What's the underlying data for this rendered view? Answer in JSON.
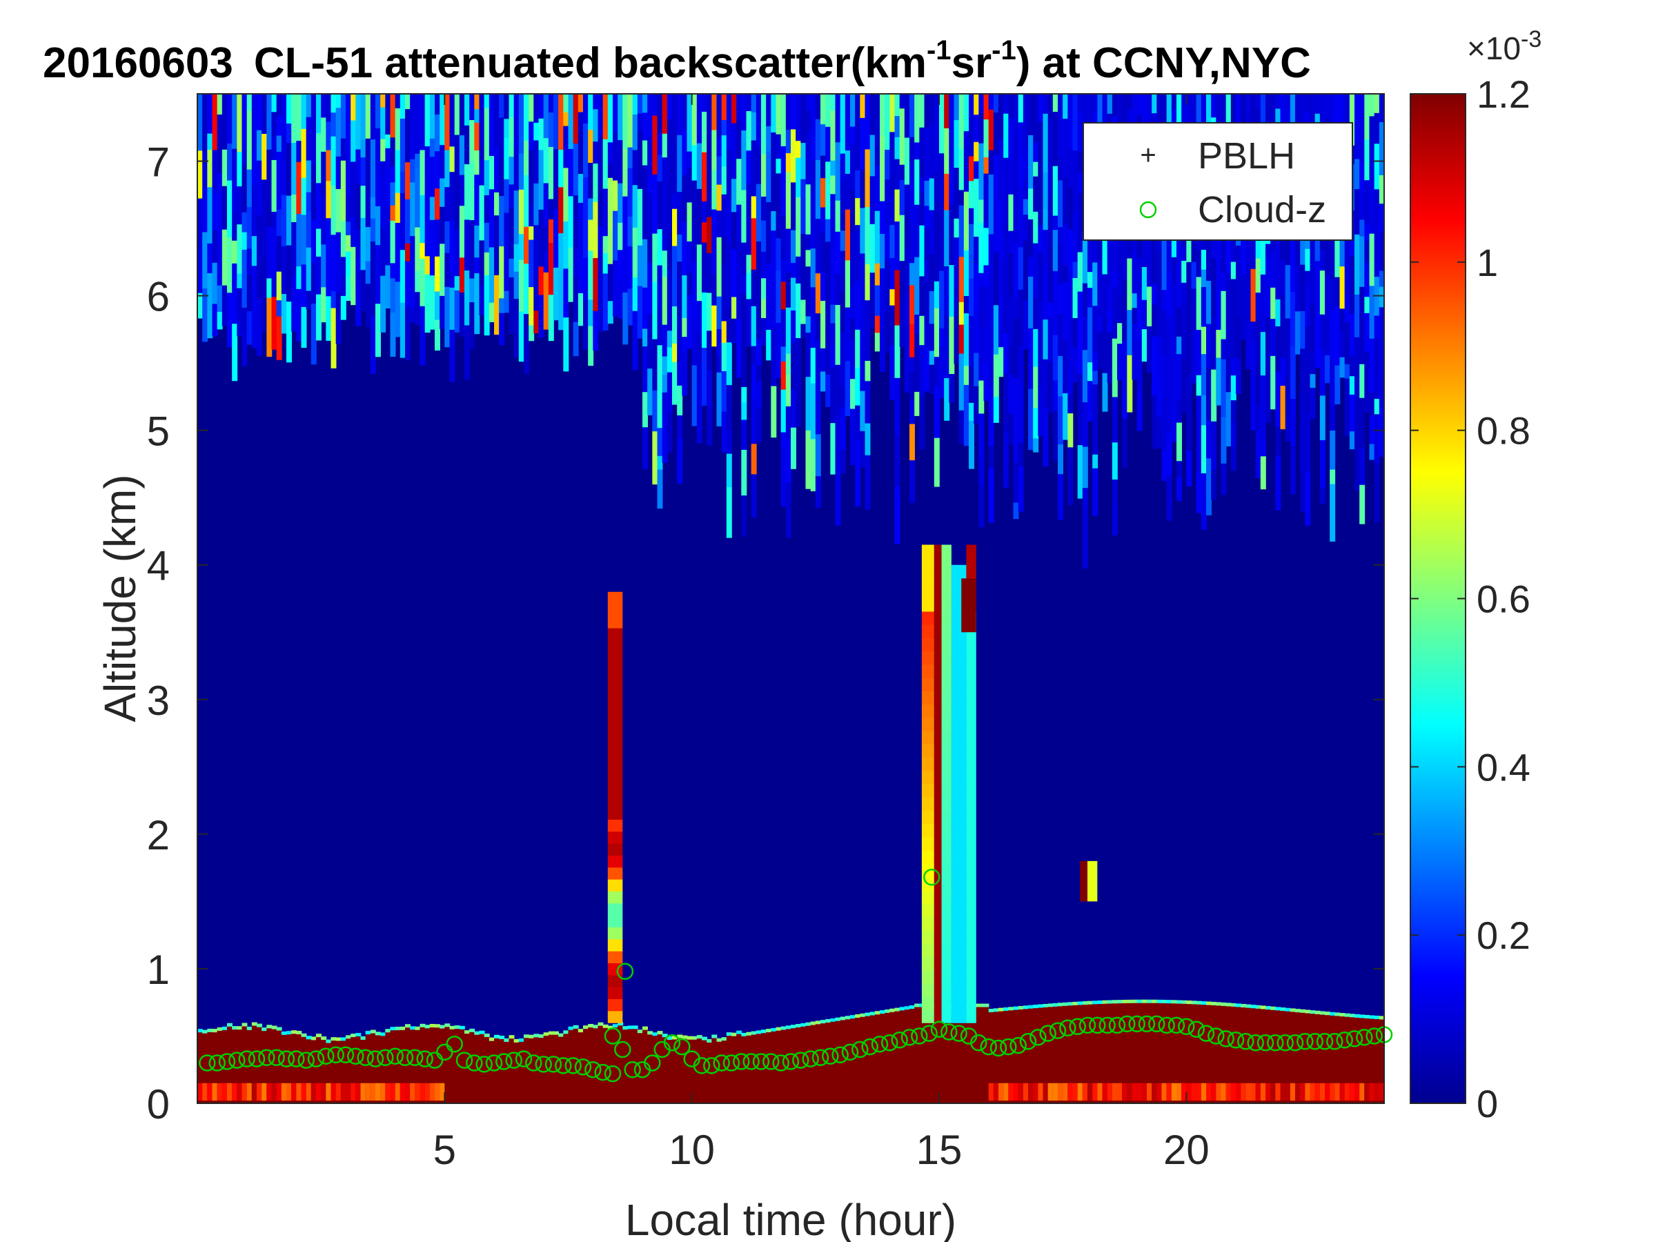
{
  "chart_data": {
    "type": "heatmap",
    "title": {
      "date": "20160603",
      "main": "CL-51 attenuated backscatter(km",
      "sup1": "-1",
      "sr": "sr",
      "sup2": "-1",
      "tail": ") at CCNY,NYC"
    },
    "xlabel": "Local time (hour)",
    "ylabel": "Altitude (km)",
    "xlim": [
      0,
      24
    ],
    "ylim": [
      0,
      7.5
    ],
    "xticks": [
      5,
      10,
      15,
      20
    ],
    "yticks": [
      0,
      1,
      2,
      3,
      4,
      5,
      6,
      7
    ],
    "colorbar": {
      "min": 0,
      "max": 1.2,
      "ticks": [
        "0",
        "0.2",
        "0.4",
        "0.6",
        "0.8",
        "1",
        "1.2"
      ],
      "multiplier_base": "×10",
      "multiplier_exp": "-3",
      "colormap": "jet"
    },
    "legend": {
      "location": "top-right",
      "entries": [
        {
          "label": "PBLH",
          "marker": "+",
          "color": "#000000"
        },
        {
          "label": "Cloud-z",
          "marker": "o",
          "color": "#00d000"
        }
      ]
    },
    "series": [
      {
        "name": "Cloud-z",
        "marker": "o",
        "color": "#00d000",
        "x": [
          0.2,
          0.4,
          0.6,
          0.8,
          1.0,
          1.2,
          1.4,
          1.6,
          1.8,
          2.0,
          2.2,
          2.4,
          2.6,
          2.8,
          3.0,
          3.2,
          3.4,
          3.6,
          3.8,
          4.0,
          4.2,
          4.4,
          4.6,
          4.8,
          5.0,
          5.2,
          5.4,
          5.6,
          5.8,
          6.0,
          6.2,
          6.4,
          6.6,
          6.8,
          7.0,
          7.2,
          7.4,
          7.6,
          7.8,
          8.0,
          8.2,
          8.4,
          8.6,
          8.8,
          9.0,
          9.2,
          9.4,
          9.6,
          9.8,
          10.0,
          10.2,
          10.4,
          10.6,
          10.8,
          11.0,
          11.2,
          11.4,
          11.6,
          11.8,
          12.0,
          12.2,
          12.4,
          12.6,
          12.8,
          13.0,
          13.2,
          13.4,
          13.6,
          13.8,
          14.0,
          14.2,
          14.4,
          14.6,
          14.8,
          15.0,
          15.2,
          15.4,
          15.6,
          15.8,
          16.0,
          16.2,
          16.4,
          16.6,
          16.8,
          17.0,
          17.2,
          17.4,
          17.6,
          17.8,
          18.0,
          18.2,
          18.4,
          18.6,
          18.8,
          19.0,
          19.2,
          19.4,
          19.6,
          19.8,
          20.0,
          20.2,
          20.4,
          20.6,
          20.8,
          21.0,
          21.2,
          21.4,
          21.6,
          21.8,
          22.0,
          22.2,
          22.4,
          22.6,
          22.8,
          23.0,
          23.2,
          23.4,
          23.6,
          23.8,
          24.0,
          8.4,
          8.65,
          14.85
        ],
        "y": [
          0.3,
          0.3,
          0.31,
          0.32,
          0.33,
          0.33,
          0.34,
          0.34,
          0.33,
          0.33,
          0.32,
          0.33,
          0.35,
          0.36,
          0.36,
          0.35,
          0.34,
          0.33,
          0.34,
          0.35,
          0.34,
          0.34,
          0.33,
          0.32,
          0.38,
          0.44,
          0.32,
          0.3,
          0.29,
          0.3,
          0.31,
          0.32,
          0.33,
          0.3,
          0.29,
          0.29,
          0.28,
          0.28,
          0.27,
          0.25,
          0.23,
          0.22,
          0.4,
          0.25,
          0.25,
          0.3,
          0.4,
          0.45,
          0.42,
          0.33,
          0.28,
          0.28,
          0.3,
          0.3,
          0.31,
          0.31,
          0.31,
          0.31,
          0.3,
          0.31,
          0.32,
          0.33,
          0.34,
          0.35,
          0.36,
          0.38,
          0.4,
          0.42,
          0.44,
          0.45,
          0.47,
          0.49,
          0.5,
          0.52,
          0.55,
          0.53,
          0.52,
          0.5,
          0.45,
          0.42,
          0.41,
          0.42,
          0.43,
          0.46,
          0.49,
          0.52,
          0.54,
          0.56,
          0.57,
          0.58,
          0.58,
          0.58,
          0.58,
          0.59,
          0.59,
          0.59,
          0.59,
          0.58,
          0.58,
          0.57,
          0.55,
          0.52,
          0.5,
          0.48,
          0.47,
          0.46,
          0.45,
          0.45,
          0.45,
          0.45,
          0.45,
          0.46,
          0.46,
          0.46,
          0.46,
          0.47,
          0.48,
          0.49,
          0.5,
          0.51,
          0.5,
          0.98,
          1.68
        ]
      }
    ]
  }
}
